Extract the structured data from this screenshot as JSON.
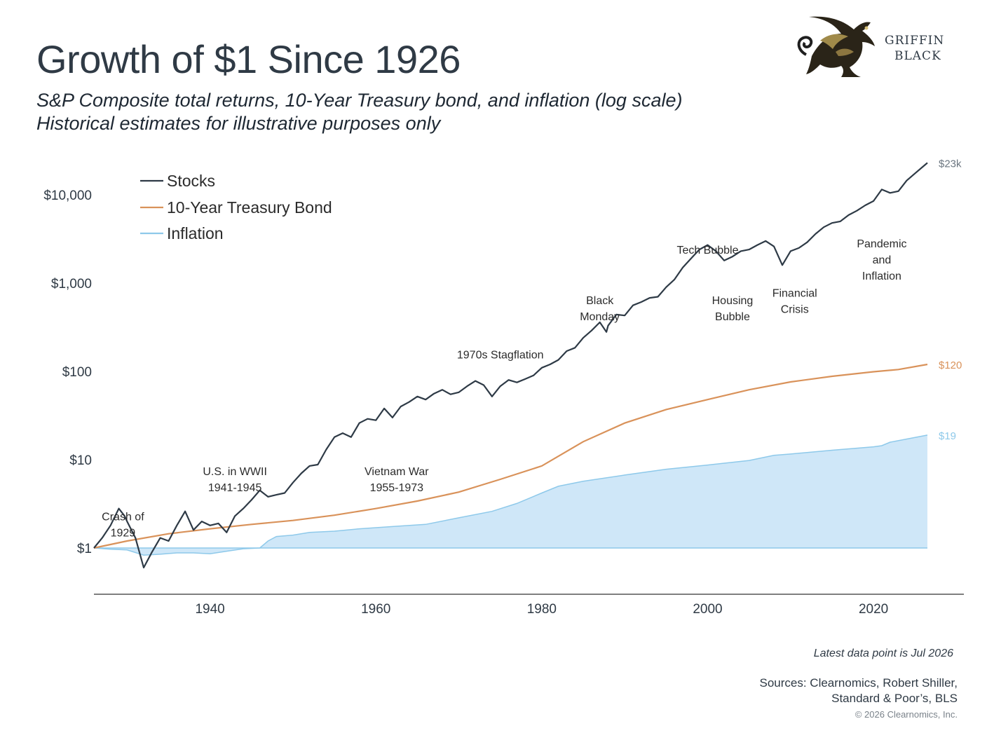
{
  "header": {
    "title": "Growth of $1 Since 1926",
    "subtitle_line1": "S&P Composite total returns, 10-Year Treasury bond, and inflation (log scale)",
    "subtitle_line2": "Historical estimates for illustrative purposes only"
  },
  "logo": {
    "line1": "GRIFFIN",
    "line2": "BLACK",
    "icon": "griffin-emblem-icon"
  },
  "footer": {
    "latest": "Latest data point is Jul 2026",
    "sources_line1": "Sources: Clearnomics, Robert Shiller,",
    "sources_line2": "Standard & Poor’s, BLS",
    "copyright": "© 2026 Clearnomics, Inc."
  },
  "chart_data": {
    "type": "line",
    "scale": "log",
    "legend_position": "top-left",
    "grid": false,
    "xlim": [
      1926,
      2031
    ],
    "ylim": [
      0.5,
      25000
    ],
    "x_ticks": [
      1940,
      1960,
      1980,
      2000,
      2020
    ],
    "x_tick_labels": [
      "1940",
      "1960",
      "1980",
      "2000",
      "2020"
    ],
    "y_ticks": [
      1,
      10,
      100,
      1000,
      10000
    ],
    "y_tick_labels": [
      "$1",
      "$10",
      "$100",
      "$1,000",
      "$10,000"
    ],
    "colors": {
      "stocks": "#2e3a46",
      "bond": "#d9925a",
      "inflation_line": "#8ec9ea",
      "inflation_fill": "#cfe7f8",
      "axis": "#333333",
      "text": "#2f3a45"
    },
    "series": [
      {
        "name": "Stocks",
        "key": "stocks",
        "end_label": "$23k",
        "points": [
          [
            1926,
            1
          ],
          [
            1927,
            1.3
          ],
          [
            1928,
            1.8
          ],
          [
            1929,
            2.8
          ],
          [
            1929.7,
            2.3
          ],
          [
            1930,
            2.0
          ],
          [
            1931,
            1.3
          ],
          [
            1932,
            0.6
          ],
          [
            1933,
            0.9
          ],
          [
            1934,
            1.3
          ],
          [
            1935,
            1.2
          ],
          [
            1936,
            1.8
          ],
          [
            1937,
            2.6
          ],
          [
            1938,
            1.6
          ],
          [
            1939,
            2.0
          ],
          [
            1940,
            1.8
          ],
          [
            1941,
            1.9
          ],
          [
            1942,
            1.5
          ],
          [
            1943,
            2.3
          ],
          [
            1944,
            2.8
          ],
          [
            1945,
            3.5
          ],
          [
            1946,
            4.5
          ],
          [
            1947,
            3.8
          ],
          [
            1948,
            4.0
          ],
          [
            1949,
            4.2
          ],
          [
            1950,
            5.5
          ],
          [
            1951,
            7
          ],
          [
            1952,
            8.5
          ],
          [
            1953,
            8.8
          ],
          [
            1954,
            13
          ],
          [
            1955,
            18
          ],
          [
            1956,
            20
          ],
          [
            1957,
            18
          ],
          [
            1958,
            26
          ],
          [
            1959,
            29
          ],
          [
            1960,
            28
          ],
          [
            1961,
            38
          ],
          [
            1962,
            30
          ],
          [
            1963,
            40
          ],
          [
            1964,
            45
          ],
          [
            1965,
            52
          ],
          [
            1966,
            48
          ],
          [
            1967,
            56
          ],
          [
            1968,
            62
          ],
          [
            1969,
            55
          ],
          [
            1970,
            58
          ],
          [
            1971,
            68
          ],
          [
            1972,
            78
          ],
          [
            1973,
            70
          ],
          [
            1974,
            52
          ],
          [
            1975,
            68
          ],
          [
            1976,
            80
          ],
          [
            1977,
            75
          ],
          [
            1978,
            82
          ],
          [
            1979,
            90
          ],
          [
            1980,
            110
          ],
          [
            1981,
            120
          ],
          [
            1982,
            135
          ],
          [
            1983,
            170
          ],
          [
            1984,
            185
          ],
          [
            1985,
            240
          ],
          [
            1986,
            290
          ],
          [
            1987,
            360
          ],
          [
            1987.8,
            280
          ],
          [
            1988,
            330
          ],
          [
            1989,
            440
          ],
          [
            1990,
            430
          ],
          [
            1991,
            560
          ],
          [
            1992,
            610
          ],
          [
            1993,
            680
          ],
          [
            1994,
            700
          ],
          [
            1995,
            900
          ],
          [
            1996,
            1100
          ],
          [
            1997,
            1500
          ],
          [
            1998,
            1900
          ],
          [
            1999,
            2400
          ],
          [
            2000,
            2700
          ],
          [
            2001,
            2300
          ],
          [
            2002,
            1800
          ],
          [
            2003,
            2000
          ],
          [
            2004,
            2300
          ],
          [
            2005,
            2400
          ],
          [
            2006,
            2700
          ],
          [
            2007,
            3000
          ],
          [
            2008,
            2600
          ],
          [
            2009,
            1600
          ],
          [
            2010,
            2300
          ],
          [
            2011,
            2500
          ],
          [
            2012,
            2900
          ],
          [
            2013,
            3600
          ],
          [
            2014,
            4300
          ],
          [
            2015,
            4800
          ],
          [
            2016,
            5000
          ],
          [
            2017,
            5900
          ],
          [
            2018,
            6600
          ],
          [
            2019,
            7600
          ],
          [
            2020,
            8500
          ],
          [
            2021,
            11500
          ],
          [
            2022,
            10500
          ],
          [
            2023,
            11000
          ],
          [
            2024,
            14500
          ],
          [
            2025,
            17500
          ],
          [
            2026,
            21000
          ],
          [
            2026.5,
            23000
          ]
        ]
      },
      {
        "name": "10-Year Treasury Bond",
        "key": "bond",
        "end_label": "$120",
        "points": [
          [
            1926,
            1
          ],
          [
            1930,
            1.2
          ],
          [
            1935,
            1.45
          ],
          [
            1940,
            1.65
          ],
          [
            1945,
            1.85
          ],
          [
            1950,
            2.05
          ],
          [
            1955,
            2.35
          ],
          [
            1960,
            2.8
          ],
          [
            1965,
            3.4
          ],
          [
            1970,
            4.3
          ],
          [
            1975,
            6
          ],
          [
            1980,
            8.5
          ],
          [
            1985,
            16
          ],
          [
            1990,
            26
          ],
          [
            1995,
            37
          ],
          [
            2000,
            48
          ],
          [
            2005,
            62
          ],
          [
            2010,
            76
          ],
          [
            2015,
            88
          ],
          [
            2020,
            99
          ],
          [
            2023,
            105
          ],
          [
            2026.5,
            120
          ]
        ]
      },
      {
        "name": "Inflation",
        "key": "inflation",
        "end_label": "$19",
        "points": [
          [
            1926,
            1
          ],
          [
            1928,
            0.97
          ],
          [
            1930,
            0.95
          ],
          [
            1932,
            0.83
          ],
          [
            1934,
            0.85
          ],
          [
            1936,
            0.88
          ],
          [
            1938,
            0.88
          ],
          [
            1940,
            0.86
          ],
          [
            1942,
            0.92
          ],
          [
            1944,
            0.98
          ],
          [
            1946,
            1.0
          ],
          [
            1947,
            1.2
          ],
          [
            1948,
            1.35
          ],
          [
            1950,
            1.4
          ],
          [
            1952,
            1.5
          ],
          [
            1955,
            1.55
          ],
          [
            1958,
            1.65
          ],
          [
            1962,
            1.75
          ],
          [
            1966,
            1.85
          ],
          [
            1970,
            2.2
          ],
          [
            1974,
            2.6
          ],
          [
            1977,
            3.2
          ],
          [
            1980,
            4.2
          ],
          [
            1982,
            5.0
          ],
          [
            1985,
            5.7
          ],
          [
            1990,
            6.7
          ],
          [
            1995,
            7.8
          ],
          [
            2000,
            8.7
          ],
          [
            2005,
            9.8
          ],
          [
            2008,
            11.2
          ],
          [
            2010,
            11.6
          ],
          [
            2015,
            12.8
          ],
          [
            2020,
            14.0
          ],
          [
            2021,
            14.4
          ],
          [
            2022,
            15.8
          ],
          [
            2026.5,
            19
          ]
        ]
      }
    ],
    "annotations": [
      {
        "lines": [
          "Crash of",
          "1929"
        ],
        "x": 1929.5,
        "y": 2.05
      },
      {
        "lines": [
          "U.S. in WWII",
          "1941-1945"
        ],
        "x": 1943,
        "y": 6.7
      },
      {
        "lines": [
          "Vietnam War",
          "1955-1973"
        ],
        "x": 1962.5,
        "y": 6.7
      },
      {
        "lines": [
          "1970s Stagflation"
        ],
        "x": 1975,
        "y": 140
      },
      {
        "lines": [
          "Black",
          "Monday"
        ],
        "x": 1987,
        "y": 580
      },
      {
        "lines": [
          "Tech Bubble"
        ],
        "x": 2000,
        "y": 2150
      },
      {
        "lines": [
          "Housing",
          "Bubble"
        ],
        "x": 2003,
        "y": 580
      },
      {
        "lines": [
          "Financial",
          "Crisis"
        ],
        "x": 2010.5,
        "y": 700
      },
      {
        "lines": [
          "Pandemic",
          "and",
          "Inflation"
        ],
        "x": 2021,
        "y": 2550
      }
    ]
  }
}
